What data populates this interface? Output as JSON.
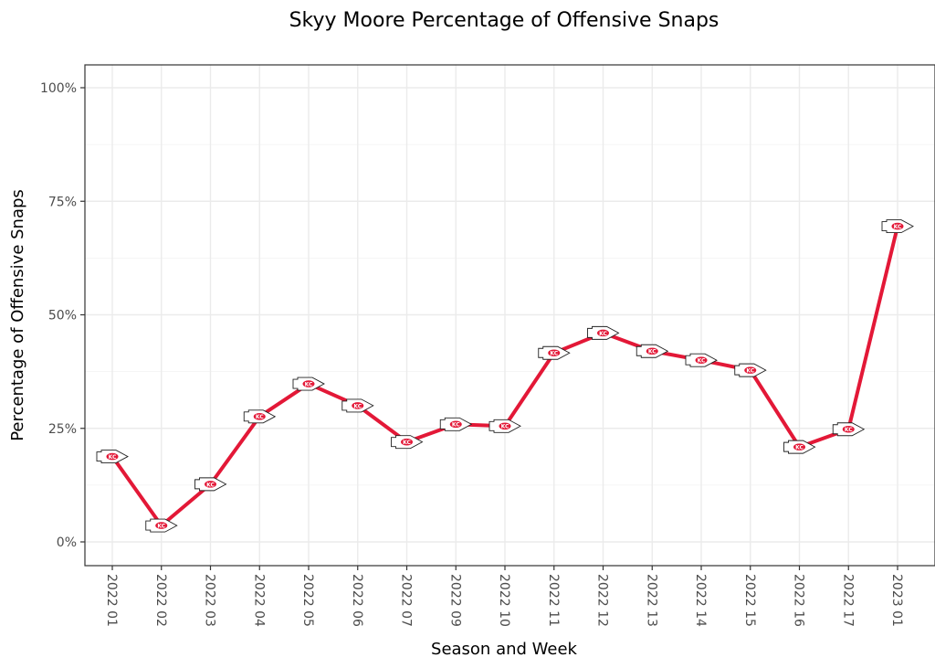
{
  "chart_data": {
    "type": "line",
    "title": "Skyy Moore Percentage of Offensive Snaps",
    "xlabel": "Season and Week",
    "ylabel": "Percentage of Offensive Snaps",
    "categories": [
      "2022 01",
      "2022 02",
      "2022 03",
      "2022 04",
      "2022 05",
      "2022 06",
      "2022 07",
      "2022 09",
      "2022 10",
      "2022 11",
      "2022 12",
      "2022 13",
      "2022 14",
      "2022 15",
      "2022 16",
      "2022 17",
      "2023 01"
    ],
    "series": [
      {
        "values": [
          18.8,
          3.6,
          12.7,
          27.6,
          34.8,
          30.0,
          22.0,
          25.9,
          25.5,
          41.6,
          46.0,
          42.0,
          40.0,
          37.8,
          20.9,
          24.8,
          69.5
        ]
      }
    ],
    "ylim": [
      -5,
      105
    ],
    "yticks": [
      0,
      25,
      50,
      75,
      100
    ],
    "ytick_labels": [
      "0%",
      "25%",
      "50%",
      "75%",
      "100%"
    ],
    "line_color": "#E31837",
    "marker_icon": "chiefs-arrowhead-logo",
    "grid": true,
    "legend": "none"
  }
}
